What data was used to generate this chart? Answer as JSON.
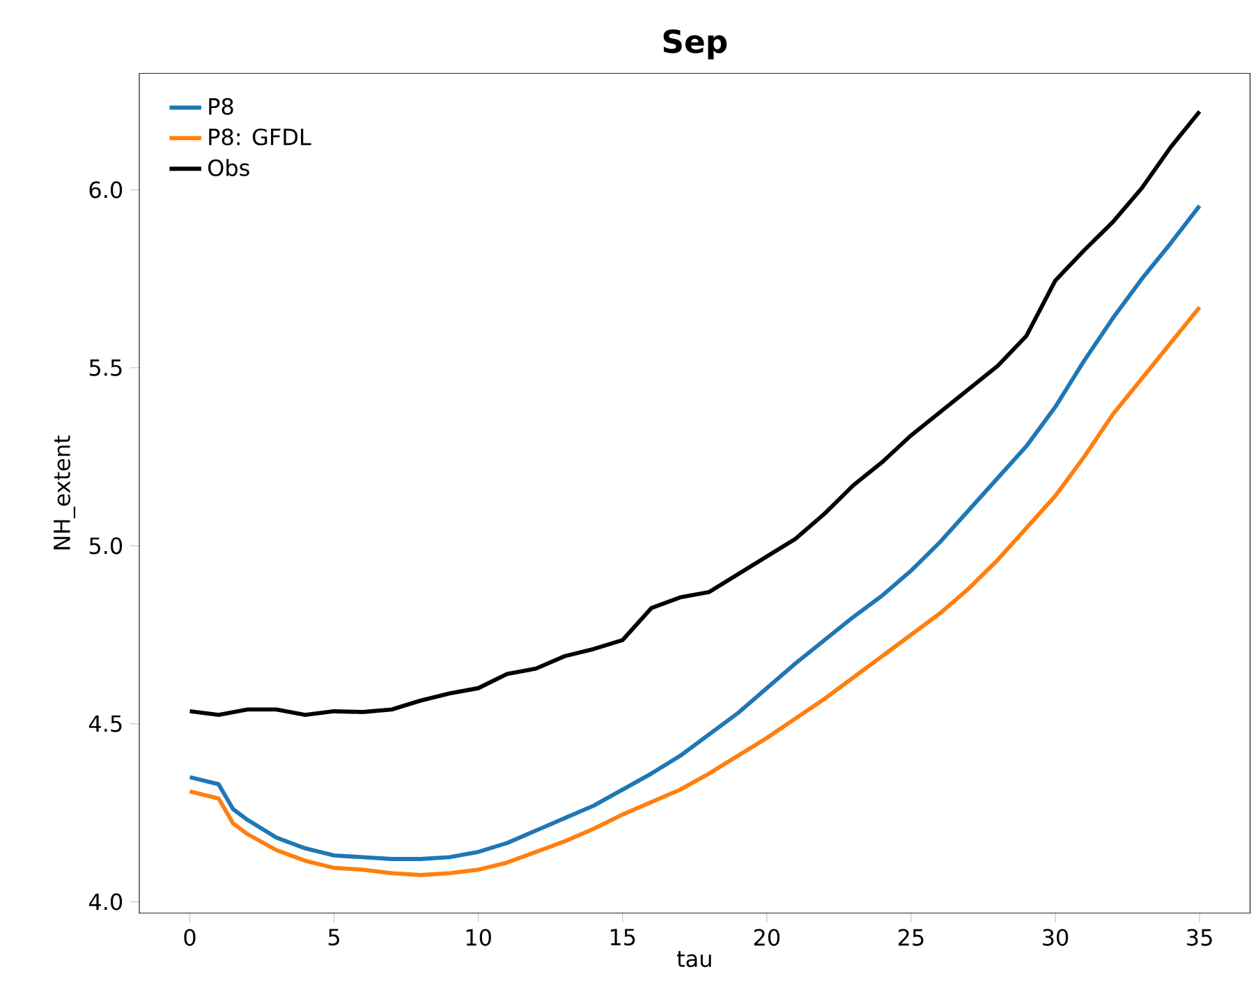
{
  "chart_data": {
    "type": "line",
    "title": "Sep",
    "xlabel": "tau",
    "ylabel": "NH_extent",
    "xlim": [
      -1.75,
      36.75
    ],
    "ylim": [
      3.968,
      6.327
    ],
    "xticks": [
      0,
      5,
      10,
      15,
      20,
      25,
      30,
      35
    ],
    "yticks": [
      {
        "value": 4.0,
        "label": "4.0"
      },
      {
        "value": 4.5,
        "label": "4.5"
      },
      {
        "value": 5.0,
        "label": "5.0"
      },
      {
        "value": 5.5,
        "label": "5.5"
      },
      {
        "value": 6.0,
        "label": "6.0"
      }
    ],
    "x": [
      0,
      0.5,
      1,
      1.5,
      2,
      3,
      4,
      5,
      6,
      7,
      8,
      9,
      10,
      11,
      12,
      13,
      14,
      15,
      16,
      17,
      18,
      19,
      20,
      21,
      22,
      23,
      24,
      25,
      26,
      27,
      28,
      29,
      30,
      31,
      32,
      33,
      34,
      35
    ],
    "legend": "top left",
    "grid": false,
    "marker": "none",
    "line_style": "solid",
    "series": [
      {
        "name": "P8",
        "color": "#1f77b4",
        "values": [
          4.35,
          4.34,
          4.33,
          4.26,
          4.23,
          4.18,
          4.15,
          4.13,
          4.125,
          4.12,
          4.12,
          4.125,
          4.14,
          4.165,
          4.2,
          4.235,
          4.27,
          4.315,
          4.36,
          4.41,
          4.47,
          4.53,
          4.6,
          4.67,
          4.735,
          4.8,
          4.86,
          4.93,
          5.01,
          5.1,
          5.19,
          5.28,
          5.39,
          5.52,
          5.64,
          5.75,
          5.85,
          5.955
        ]
      },
      {
        "name": "P8: GFDL",
        "color": "#ff7f0e",
        "values": [
          4.31,
          4.3,
          4.29,
          4.22,
          4.19,
          4.145,
          4.115,
          4.095,
          4.09,
          4.08,
          4.075,
          4.08,
          4.09,
          4.11,
          4.14,
          4.17,
          4.205,
          4.245,
          4.28,
          4.315,
          4.36,
          4.41,
          4.46,
          4.515,
          4.57,
          4.63,
          4.69,
          4.75,
          4.81,
          4.88,
          4.96,
          5.05,
          5.14,
          5.25,
          5.37,
          5.47,
          5.57,
          5.67
        ]
      },
      {
        "name": "Obs",
        "color": "#000000",
        "x": [
          0,
          1,
          2,
          3,
          4,
          5,
          6,
          7,
          8,
          9,
          10,
          11,
          12,
          13,
          14,
          15,
          16,
          17,
          18,
          19,
          20,
          21,
          22,
          23,
          24,
          25,
          26,
          27,
          28,
          29,
          30,
          31,
          32,
          33,
          34,
          35
        ],
        "values": [
          4.535,
          4.525,
          4.54,
          4.54,
          4.525,
          4.535,
          4.533,
          4.54,
          4.565,
          4.585,
          4.6,
          4.64,
          4.655,
          4.69,
          4.71,
          4.735,
          4.825,
          4.855,
          4.87,
          4.92,
          4.97,
          5.02,
          5.09,
          5.17,
          5.235,
          5.31,
          5.375,
          5.44,
          5.505,
          5.59,
          5.745,
          5.83,
          5.91,
          6.005,
          6.12,
          6.22
        ]
      }
    ]
  }
}
